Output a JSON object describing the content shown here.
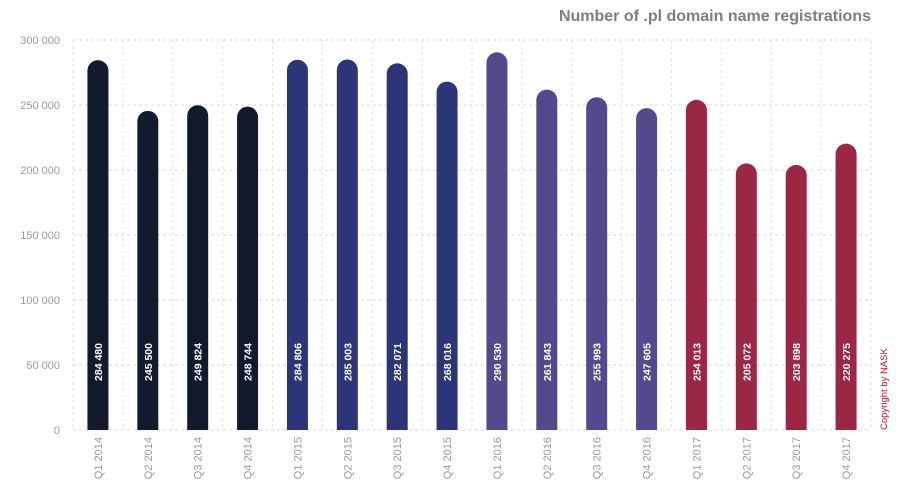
{
  "chart_data": {
    "type": "bar",
    "title": "Number of .pl domain name registrations",
    "xlabel": "",
    "ylabel": "",
    "ylim": [
      0,
      300000
    ],
    "yticks": [
      {
        "value": 0,
        "label": "0"
      },
      {
        "value": 50000,
        "label": "50 000"
      },
      {
        "value": 100000,
        "label": "100 000"
      },
      {
        "value": 150000,
        "label": "150 000"
      },
      {
        "value": 200000,
        "label": "200 000"
      },
      {
        "value": 250000,
        "label": "250 000"
      },
      {
        "value": 300000,
        "label": "300 000"
      }
    ],
    "grid": true,
    "categories": [
      "Q1 2014",
      "Q2 2014",
      "Q3 2014",
      "Q4 2014",
      "Q1 2015",
      "Q2 2015",
      "Q3 2015",
      "Q4 2015",
      "Q1 2016",
      "Q2 2016",
      "Q3 2016",
      "Q4 2016",
      "Q1 2017",
      "Q2 2017",
      "Q3 2017",
      "Q4 2017"
    ],
    "values": [
      284480,
      245500,
      249824,
      248744,
      284806,
      285003,
      282071,
      268016,
      290530,
      261843,
      255993,
      247605,
      254013,
      205072,
      203898,
      220275
    ],
    "value_labels": [
      "284 480",
      "245 500",
      "249 824",
      "248 744",
      "284 806",
      "285 003",
      "282 071",
      "268 016",
      "290 530",
      "261 843",
      "255 993",
      "247 605",
      "254 013",
      "205 072",
      "203 898",
      "220 275"
    ],
    "bar_colors": [
      "#131a2e",
      "#131a2e",
      "#131a2e",
      "#131a2e",
      "#2c3577",
      "#2c3577",
      "#2c3577",
      "#2c3577",
      "#534a8e",
      "#534a8e",
      "#534a8e",
      "#534a8e",
      "#9b2646",
      "#9b2646",
      "#9b2646",
      "#9b2646"
    ]
  },
  "copyright": "Copyright by NASK"
}
